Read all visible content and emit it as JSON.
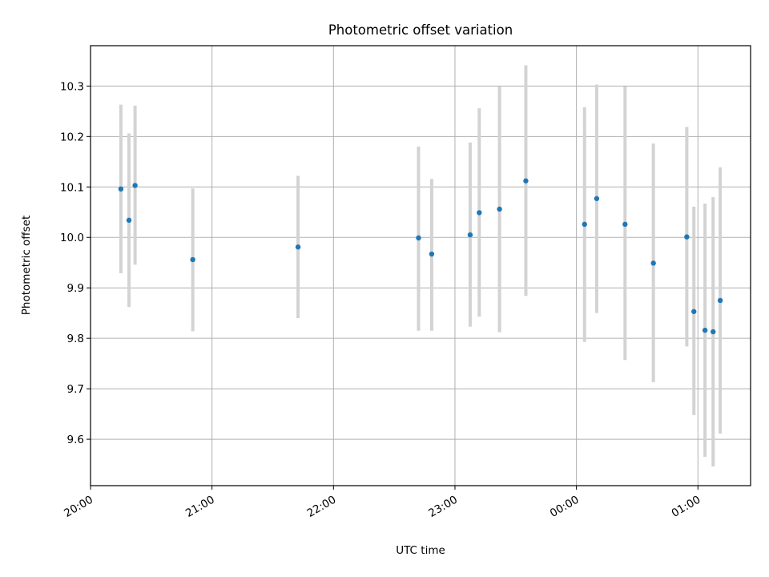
{
  "chart_data": {
    "type": "scatter",
    "title": "Photometric offset variation",
    "xlabel": "UTC time",
    "ylabel": "Photometric offset",
    "x_unit": "minutes after 20:00 UTC",
    "xlim": [
      0,
      326
    ],
    "ylim": [
      9.508,
      10.38
    ],
    "grid": true,
    "x_ticks": [
      {
        "value": 0,
        "label": "20:00"
      },
      {
        "value": 60,
        "label": "21:00"
      },
      {
        "value": 120,
        "label": "22:00"
      },
      {
        "value": 180,
        "label": "23:00"
      },
      {
        "value": 240,
        "label": "00:00"
      },
      {
        "value": 300,
        "label": "01:00"
      }
    ],
    "y_ticks": [
      {
        "value": 9.6,
        "label": "9.6"
      },
      {
        "value": 9.7,
        "label": "9.7"
      },
      {
        "value": 9.8,
        "label": "9.8"
      },
      {
        "value": 9.9,
        "label": "9.9"
      },
      {
        "value": 10.0,
        "label": "10.0"
      },
      {
        "value": 10.1,
        "label": "10.1"
      },
      {
        "value": 10.2,
        "label": "10.2"
      },
      {
        "value": 10.3,
        "label": "10.3"
      }
    ],
    "colors": {
      "points": "#1f77b4",
      "errorbars": "#d3d3d3",
      "grid": "#b0b0b0"
    },
    "points": [
      {
        "x": 15.0,
        "y": 10.096,
        "lo": 9.929,
        "hi": 10.263
      },
      {
        "x": 19.0,
        "y": 10.034,
        "lo": 9.862,
        "hi": 10.206
      },
      {
        "x": 22.0,
        "y": 10.103,
        "lo": 9.946,
        "hi": 10.261
      },
      {
        "x": 50.5,
        "y": 9.956,
        "lo": 9.814,
        "hi": 10.097
      },
      {
        "x": 102.5,
        "y": 9.981,
        "lo": 9.84,
        "hi": 10.122
      },
      {
        "x": 162.0,
        "y": 9.999,
        "lo": 9.815,
        "hi": 10.18
      },
      {
        "x": 168.5,
        "y": 9.967,
        "lo": 9.815,
        "hi": 10.116
      },
      {
        "x": 187.5,
        "y": 10.005,
        "lo": 9.823,
        "hi": 10.188
      },
      {
        "x": 192.0,
        "y": 10.049,
        "lo": 9.843,
        "hi": 10.256
      },
      {
        "x": 202.0,
        "y": 10.056,
        "lo": 9.812,
        "hi": 10.299
      },
      {
        "x": 215.0,
        "y": 10.112,
        "lo": 9.884,
        "hi": 10.341
      },
      {
        "x": 244.0,
        "y": 10.026,
        "lo": 9.793,
        "hi": 10.258
      },
      {
        "x": 250.0,
        "y": 10.077,
        "lo": 9.85,
        "hi": 10.303
      },
      {
        "x": 264.0,
        "y": 10.026,
        "lo": 9.757,
        "hi": 10.299
      },
      {
        "x": 278.0,
        "y": 9.949,
        "lo": 9.713,
        "hi": 10.186
      },
      {
        "x": 294.5,
        "y": 10.001,
        "lo": 9.784,
        "hi": 10.219
      },
      {
        "x": 298.0,
        "y": 9.853,
        "lo": 9.648,
        "hi": 10.061
      },
      {
        "x": 303.5,
        "y": 9.816,
        "lo": 9.565,
        "hi": 10.067
      },
      {
        "x": 307.5,
        "y": 9.813,
        "lo": 9.546,
        "hi": 10.08
      },
      {
        "x": 311.0,
        "y": 9.875,
        "lo": 9.611,
        "hi": 10.139
      }
    ]
  }
}
